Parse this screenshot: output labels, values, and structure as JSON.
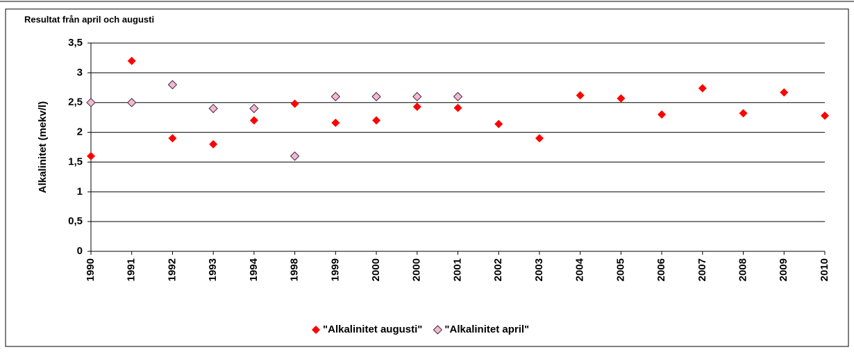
{
  "chart_data": {
    "type": "scatter",
    "title": "Resultat från april och augusti",
    "y_label": "Alkalinitet  (mekv/l)",
    "categories": [
      "1990",
      "1991",
      "1992",
      "1993",
      "1994",
      "1998",
      "1999",
      "2000",
      "2000",
      "2001",
      "2002",
      "2003",
      "2004",
      "2005",
      "2006",
      "2007",
      "2008",
      "2009",
      "2010"
    ],
    "series": [
      {
        "name": "\"Alkalinitet augusti\"",
        "color": "#ff0000",
        "values": [
          1.6,
          3.2,
          1.9,
          1.8,
          2.2,
          2.48,
          2.16,
          2.2,
          2.43,
          2.41,
          2.14,
          1.9,
          2.62,
          2.57,
          2.3,
          2.74,
          2.32,
          2.67,
          2.28
        ]
      },
      {
        "name": "\"Alkalinitet april\"",
        "color": "#ffb3d9",
        "values": [
          2.5,
          2.5,
          2.8,
          2.4,
          2.4,
          1.6,
          2.6,
          2.6,
          2.6,
          2.6,
          null,
          null,
          null,
          null,
          null,
          null,
          null,
          null,
          null
        ]
      }
    ],
    "ylim": [
      0,
      3.5
    ],
    "yticks": [
      0,
      {
        "value": 0.5,
        "label": "0,5"
      },
      1,
      {
        "value": 1.5,
        "label": "1,5"
      },
      2,
      {
        "value": 2.5,
        "label": "2,5"
      },
      3,
      {
        "value": 3.5,
        "label": "3,5"
      }
    ],
    "grid": true,
    "legend": "bottom"
  }
}
